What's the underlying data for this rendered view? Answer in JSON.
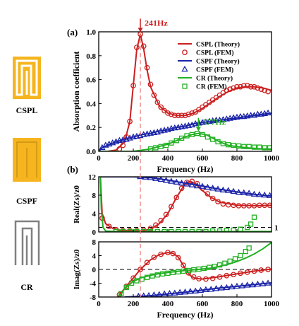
{
  "colors": {
    "cspl": "#cc1f1f",
    "cspf": "#1a23a8",
    "cr": "#22b022",
    "gold": "#f6b51f",
    "gray": "#808080",
    "guide": "#f08080"
  },
  "structures": {
    "cspl": {
      "label": "CSPL",
      "icon": "cspl-slit-icon"
    },
    "cspf": {
      "label": "CSPF",
      "icon": "cspf-slit-icon"
    },
    "cr": {
      "label": "CR",
      "icon": "cr-resonator-icon"
    }
  },
  "guide_line_x": 241,
  "chart_data": [
    {
      "panel": "(a)",
      "type": "line",
      "xlabel": "Frequency (Hz)",
      "ylabel": "Absorption coefficient",
      "xlim": [
        0,
        1000
      ],
      "ylim": [
        0,
        1.0
      ],
      "xticks": [
        "0",
        "200",
        "400",
        "600",
        "800",
        "1000"
      ],
      "yticks": [
        "0.0",
        "0.2",
        "0.4",
        "0.6",
        "0.8",
        "1.0"
      ],
      "legend_position": "top-right",
      "annotations": [
        {
          "text": "241Hz",
          "x": 241,
          "y": 0.98,
          "color": "#cc1f1f"
        },
        {
          "text": "577Hz",
          "x": 577,
          "y": 0.15,
          "color": "#22b022"
        }
      ],
      "series": [
        {
          "name": "CSPL (Theory)",
          "kind": "line",
          "color": "#cc1f1f",
          "x": [
            0,
            50,
            100,
            150,
            180,
            200,
            220,
            241,
            260,
            280,
            300,
            350,
            400,
            450,
            500,
            550,
            600,
            650,
            700,
            750,
            800,
            850,
            900,
            950,
            1000
          ],
          "y": [
            0,
            0,
            0.01,
            0.08,
            0.25,
            0.55,
            0.85,
            0.98,
            0.86,
            0.68,
            0.54,
            0.38,
            0.32,
            0.3,
            0.3,
            0.32,
            0.36,
            0.41,
            0.46,
            0.5,
            0.53,
            0.54,
            0.54,
            0.53,
            0.51
          ]
        },
        {
          "name": "CSPL (FEM)",
          "kind": "markers",
          "marker": "circle",
          "color": "#cc1f1f",
          "x": [
            120,
            140,
            160,
            180,
            200,
            220,
            241,
            260,
            280,
            300,
            320,
            340,
            360,
            380,
            400,
            420,
            440,
            460,
            480,
            500,
            520,
            540,
            560,
            580,
            600,
            620,
            640,
            660,
            680,
            700,
            720,
            740,
            760,
            780,
            800,
            820,
            840,
            860,
            880,
            900,
            920,
            940,
            960,
            980
          ],
          "y": [
            0.02,
            0.05,
            0.12,
            0.25,
            0.55,
            0.87,
            0.98,
            0.88,
            0.7,
            0.56,
            0.47,
            0.41,
            0.37,
            0.34,
            0.32,
            0.31,
            0.3,
            0.3,
            0.3,
            0.3,
            0.31,
            0.32,
            0.33,
            0.35,
            0.37,
            0.39,
            0.41,
            0.43,
            0.45,
            0.47,
            0.49,
            0.51,
            0.52,
            0.53,
            0.54,
            0.54,
            0.55,
            0.55,
            0.54,
            0.54,
            0.53,
            0.52,
            0.51,
            0.5
          ]
        },
        {
          "name": "CSPF (Theory)",
          "kind": "line",
          "color": "#1a23a8",
          "x": [
            0,
            20,
            50,
            100,
            150,
            200,
            250,
            300,
            350,
            400,
            450,
            500,
            550,
            600,
            650,
            700,
            750,
            800,
            850,
            900,
            950,
            1000
          ],
          "y": [
            0,
            0.03,
            0.05,
            0.08,
            0.1,
            0.12,
            0.14,
            0.15,
            0.17,
            0.18,
            0.2,
            0.21,
            0.23,
            0.24,
            0.25,
            0.26,
            0.27,
            0.28,
            0.29,
            0.3,
            0.31,
            0.32
          ]
        },
        {
          "name": "CSPF (FEM)",
          "kind": "markers",
          "marker": "triangle",
          "color": "#1a23a8",
          "x": [
            20,
            40,
            60,
            80,
            100,
            120,
            140,
            160,
            180,
            200,
            220,
            240,
            260,
            280,
            300,
            320,
            340,
            360,
            380,
            400,
            420,
            440,
            460,
            480,
            500,
            520,
            540,
            560,
            580,
            600,
            620,
            640,
            660,
            680,
            700,
            720,
            740,
            760,
            780,
            800,
            820,
            840,
            860,
            880,
            900,
            920,
            940,
            960,
            980
          ],
          "y": [
            0.03,
            0.05,
            0.06,
            0.07,
            0.08,
            0.09,
            0.095,
            0.1,
            0.11,
            0.12,
            0.125,
            0.13,
            0.14,
            0.145,
            0.15,
            0.155,
            0.16,
            0.17,
            0.175,
            0.18,
            0.19,
            0.195,
            0.2,
            0.205,
            0.21,
            0.215,
            0.22,
            0.23,
            0.235,
            0.24,
            0.245,
            0.25,
            0.255,
            0.26,
            0.26,
            0.265,
            0.27,
            0.275,
            0.28,
            0.285,
            0.29,
            0.29,
            0.295,
            0.3,
            0.3,
            0.31,
            0.31,
            0.315,
            0.32
          ]
        },
        {
          "name": "CR (Theory)",
          "kind": "line",
          "color": "#22b022",
          "x": [
            0,
            100,
            200,
            300,
            350,
            400,
            450,
            500,
            540,
            577,
            620,
            660,
            700,
            750,
            800,
            850,
            900,
            950,
            1000
          ],
          "y": [
            0,
            0,
            0,
            0.02,
            0.04,
            0.06,
            0.09,
            0.12,
            0.14,
            0.15,
            0.14,
            0.11,
            0.08,
            0.05,
            0.04,
            0.03,
            0.025,
            0.02,
            0.02
          ]
        },
        {
          "name": "CR (FEM)",
          "kind": "markers",
          "marker": "square",
          "color": "#22b022",
          "x": [
            300,
            330,
            360,
            390,
            420,
            450,
            480,
            510,
            540,
            570,
            600,
            630,
            660,
            690,
            720,
            750,
            780,
            810,
            840,
            870,
            900,
            930,
            960,
            990
          ],
          "y": [
            0.02,
            0.03,
            0.04,
            0.05,
            0.07,
            0.09,
            0.11,
            0.13,
            0.14,
            0.15,
            0.14,
            0.12,
            0.1,
            0.08,
            0.065,
            0.055,
            0.05,
            0.045,
            0.04,
            0.04,
            0.035,
            0.035,
            0.03,
            0.03
          ]
        }
      ]
    },
    {
      "panel": "(b)",
      "type": "line",
      "ylabel": "Real(Zs)/z0",
      "xlim": [
        0,
        1000
      ],
      "ylim": [
        0,
        12
      ],
      "yticks": [
        "0",
        "4",
        "8",
        "12"
      ],
      "reference_lines": [
        {
          "y": 1,
          "label": "1",
          "style": "dashed"
        }
      ],
      "series": [
        {
          "kind": "line",
          "color": "#cc1f1f",
          "x": [
            10,
            20,
            40,
            80,
            120,
            200,
            260,
            300,
            350,
            400,
            450,
            500,
            530,
            560,
            600,
            650,
            700,
            800,
            900,
            1000
          ],
          "y": [
            12,
            4,
            1.8,
            0.8,
            0.4,
            0.3,
            0.3,
            0.6,
            1.8,
            4,
            7.5,
            10.5,
            11,
            10.5,
            9,
            7.5,
            6.5,
            5.8,
            5.7,
            5.8
          ]
        },
        {
          "kind": "markers",
          "marker": "circle",
          "color": "#cc1f1f",
          "x": [
            20,
            60,
            100,
            140,
            180,
            220,
            260,
            300,
            330,
            360,
            390,
            420,
            450,
            480,
            510,
            540,
            570,
            600,
            630,
            660,
            690,
            720,
            750,
            780,
            810,
            840,
            870,
            900,
            930,
            960,
            990
          ],
          "y": [
            3,
            1.2,
            0.5,
            0.3,
            0.3,
            0.3,
            0.4,
            0.8,
            1.5,
            2.5,
            3.8,
            5.5,
            7.5,
            9.5,
            10.8,
            11,
            10.5,
            9.5,
            8.3,
            7.3,
            6.6,
            6.1,
            5.9,
            5.8,
            5.7,
            5.7,
            5.7,
            5.7,
            5.8,
            5.8,
            5.8
          ]
        },
        {
          "kind": "line",
          "color": "#1a23a8",
          "x": [
            10,
            30,
            60,
            100,
            150,
            200,
            300,
            400,
            500,
            600,
            700,
            800,
            900,
            1000
          ],
          "y": [
            12,
            12,
            12,
            12,
            12,
            12,
            11.8,
            11.3,
            10.6,
            10,
            9.3,
            8.7,
            8.2,
            7.8
          ]
        },
        {
          "kind": "markers",
          "marker": "triangle",
          "color": "#1a23a8",
          "x": [
            240,
            270,
            300,
            330,
            360,
            390,
            420,
            450,
            480,
            510,
            540,
            570,
            600,
            630,
            660,
            690,
            720,
            750,
            780,
            810,
            840,
            870,
            900,
            930,
            960,
            990
          ],
          "y": [
            12,
            11.9,
            11.8,
            11.6,
            11.4,
            11.2,
            11,
            10.8,
            10.6,
            10.4,
            10.2,
            10,
            9.9,
            9.7,
            9.5,
            9.3,
            9.1,
            9,
            8.8,
            8.6,
            8.5,
            8.4,
            8.2,
            8.1,
            8,
            7.9
          ]
        },
        {
          "kind": "line",
          "color": "#22b022",
          "x": [
            10,
            15,
            25,
            40,
            100,
            200,
            300,
            400,
            500,
            600,
            700,
            800,
            900,
            1000
          ],
          "y": [
            12,
            5,
            1,
            0.2,
            0.1,
            0.1,
            0.1,
            0.1,
            0.1,
            0.1,
            0.1,
            0.1,
            0.1,
            0.1
          ]
        },
        {
          "kind": "markers",
          "marker": "square",
          "color": "#22b022",
          "x": [
            100,
            140,
            180,
            220,
            260,
            300,
            340,
            380,
            420,
            460,
            500,
            540,
            580,
            620,
            660,
            700,
            740,
            780,
            820,
            860,
            880,
            900
          ],
          "y": [
            0.1,
            0.1,
            0.1,
            0.1,
            0.1,
            0.1,
            0.1,
            0.1,
            0.1,
            0.1,
            0.1,
            0.1,
            0.1,
            0.1,
            0.2,
            0.2,
            0.3,
            0.4,
            0.6,
            1.0,
            1.7,
            3.2
          ]
        }
      ]
    },
    {
      "panel": "(b) lower",
      "type": "line",
      "xlabel": "Frequency (Hz)",
      "ylabel": "Imag(Zs)/z0",
      "xlim": [
        0,
        1000
      ],
      "ylim": [
        -8,
        8
      ],
      "xticks": [
        "0",
        "200",
        "400",
        "600",
        "800",
        "1000"
      ],
      "yticks": [
        "-8",
        "-4",
        "0",
        "4",
        "8"
      ],
      "reference_lines": [
        {
          "y": 0,
          "style": "dashed"
        }
      ],
      "series": [
        {
          "kind": "line",
          "color": "#cc1f1f",
          "x": [
            110,
            150,
            200,
            241,
            300,
            350,
            400,
            430,
            460,
            500,
            530,
            560,
            600,
            700,
            800,
            900,
            1000
          ],
          "y": [
            -8,
            -5.5,
            -2.5,
            0,
            2.8,
            4.3,
            4.9,
            4.7,
            3.6,
            0.3,
            -1.8,
            -2.6,
            -2.8,
            -2.1,
            -1.3,
            -0.5,
            0.1
          ]
        },
        {
          "kind": "markers",
          "marker": "circle",
          "color": "#cc1f1f",
          "x": [
            120,
            160,
            200,
            241,
            280,
            320,
            360,
            400,
            430,
            460,
            490,
            520,
            550,
            580,
            620,
            660,
            700,
            740,
            780,
            820,
            860,
            900,
            940,
            980
          ],
          "y": [
            -7.3,
            -4.9,
            -2.5,
            0,
            2,
            3.5,
            4.4,
            4.9,
            4.6,
            3.4,
            1.2,
            -1,
            -2.2,
            -2.7,
            -2.8,
            -2.6,
            -2.2,
            -1.8,
            -1.5,
            -1.1,
            -0.8,
            -0.5,
            -0.2,
            0
          ]
        },
        {
          "kind": "line",
          "color": "#1a23a8",
          "x": [
            150,
            200,
            300,
            400,
            500,
            600,
            700,
            800,
            900,
            1000
          ],
          "y": [
            -8,
            -7.9,
            -7.6,
            -7.1,
            -6.6,
            -6,
            -5.4,
            -4.9,
            -4.4,
            -3.9
          ]
        },
        {
          "kind": "markers",
          "marker": "triangle",
          "color": "#1a23a8",
          "x": [
            230,
            260,
            290,
            320,
            350,
            380,
            410,
            440,
            470,
            500,
            530,
            560,
            590,
            620,
            650,
            680,
            710,
            740,
            770,
            800,
            830,
            860,
            890,
            920,
            950,
            980
          ],
          "y": [
            -7.8,
            -7.7,
            -7.6,
            -7.4,
            -7.3,
            -7.1,
            -7,
            -6.9,
            -6.7,
            -6.6,
            -6.4,
            -6.3,
            -6.1,
            -5.9,
            -5.8,
            -5.6,
            -5.4,
            -5.3,
            -5.1,
            -4.9,
            -4.8,
            -4.6,
            -4.5,
            -4.3,
            -4.2,
            -4
          ]
        },
        {
          "kind": "line",
          "color": "#22b022",
          "x": [
            120,
            150,
            200,
            241,
            300,
            350,
            400,
            450,
            500,
            577,
            650,
            700,
            750,
            800,
            850,
            900,
            950,
            1000
          ],
          "y": [
            -8,
            -5.5,
            -3.5,
            -2.5,
            -1.7,
            -1.2,
            -0.9,
            -0.6,
            -0.3,
            0,
            0.4,
            0.9,
            1.5,
            2.3,
            3.3,
            4.5,
            6,
            7.8
          ]
        },
        {
          "kind": "markers",
          "marker": "square",
          "color": "#22b022",
          "x": [
            130,
            160,
            190,
            220,
            250,
            280,
            310,
            340,
            370,
            400,
            430,
            460,
            490,
            520,
            550,
            580,
            610,
            640,
            670,
            700,
            730,
            760,
            790,
            820,
            850,
            870
          ],
          "y": [
            -7,
            -5.2,
            -4,
            -3.3,
            -2.8,
            -2.3,
            -1.9,
            -1.6,
            -1.3,
            -1.1,
            -0.9,
            -0.7,
            -0.5,
            -0.3,
            -0.1,
            0.1,
            0.3,
            0.6,
            0.9,
            1.3,
            1.8,
            2.4,
            3.1,
            4,
            5.2,
            6.2
          ]
        }
      ]
    }
  ]
}
